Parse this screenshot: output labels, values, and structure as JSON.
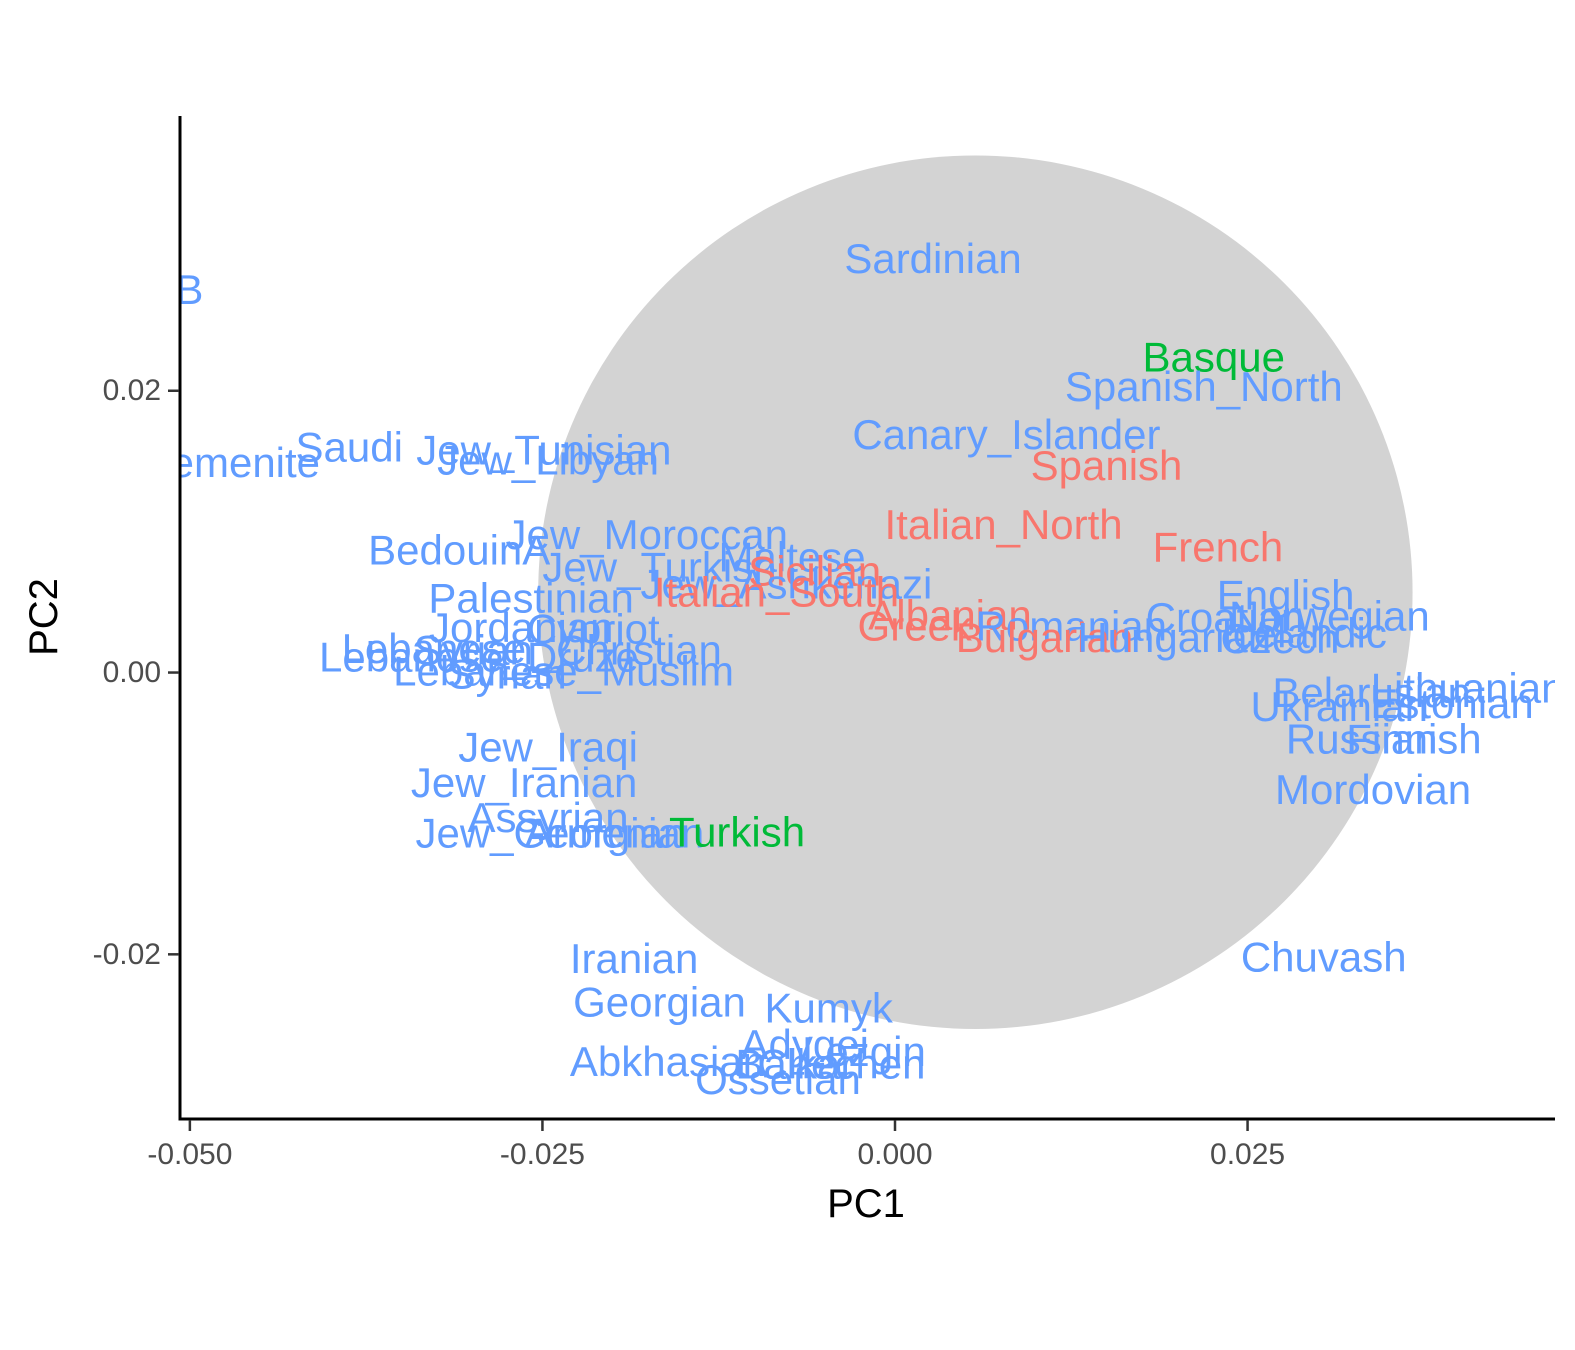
{
  "chart_data": {
    "type": "scatter",
    "title": "",
    "xlabel": "PC1",
    "ylabel": "PC2",
    "xlim": [
      -0.0507,
      0.0468
    ],
    "ylim": [
      -0.0319,
      0.0395
    ],
    "x_ticks": [
      -0.05,
      -0.025,
      0.0,
      0.025
    ],
    "x_tick_labels": [
      "-0.050",
      "-0.025",
      "0.000",
      "0.025"
    ],
    "y_ticks": [
      -0.02,
      0.0,
      0.02
    ],
    "y_tick_labels": [
      "-0.02",
      "0.00",
      "0.02"
    ],
    "grid": false,
    "legend": "none",
    "colors": {
      "blue": "#619CFF",
      "red": "#F8766D",
      "green": "#00BA38",
      "circle": "#D3D3D3"
    },
    "highlight_region": {
      "center_x": 0.0057,
      "center_y": 0.0057,
      "radius_x": 0.031,
      "radius_y": 0.031
    },
    "points": [
      {
        "label": "BedouinB",
        "x": -0.0555,
        "y": 0.0272,
        "color": "blue"
      },
      {
        "label": "Sardinian",
        "x": 0.0027,
        "y": 0.0294,
        "color": "blue"
      },
      {
        "label": "Basque",
        "x": 0.0226,
        "y": 0.0224,
        "color": "green"
      },
      {
        "label": "Spanish_North",
        "x": 0.0219,
        "y": 0.0203,
        "color": "blue"
      },
      {
        "label": "Canary_Islander",
        "x": 0.0079,
        "y": 0.0169,
        "color": "blue"
      },
      {
        "label": "Spanish",
        "x": 0.015,
        "y": 0.0147,
        "color": "red"
      },
      {
        "label": "Saudi",
        "x": -0.0387,
        "y": 0.016,
        "color": "blue"
      },
      {
        "label": "Jew_Yemenite",
        "x": -0.0504,
        "y": 0.0149,
        "color": "blue"
      },
      {
        "label": "Jew_Tunisian",
        "x": -0.0249,
        "y": 0.0158,
        "color": "blue"
      },
      {
        "label": "Jew_Libyan",
        "x": -0.0246,
        "y": 0.0151,
        "color": "blue"
      },
      {
        "label": "Italian_North",
        "x": 0.0077,
        "y": 0.0105,
        "color": "red"
      },
      {
        "label": "French",
        "x": 0.0229,
        "y": 0.0089,
        "color": "red"
      },
      {
        "label": "BedouinA",
        "x": -0.0309,
        "y": 0.0087,
        "color": "blue"
      },
      {
        "label": "Jew_Moroccan",
        "x": -0.0176,
        "y": 0.0098,
        "color": "blue"
      },
      {
        "label": "Maltese",
        "x": -0.0073,
        "y": 0.0082,
        "color": "blue"
      },
      {
        "label": "Jew_Turkish",
        "x": -0.0167,
        "y": 0.0075,
        "color": "blue"
      },
      {
        "label": "Sicilian",
        "x": -0.0057,
        "y": 0.0072,
        "color": "red"
      },
      {
        "label": "Jew_Ashkenazi",
        "x": -0.0077,
        "y": 0.0063,
        "color": "blue"
      },
      {
        "label": "Italian_South",
        "x": -0.0084,
        "y": 0.0057,
        "color": "red"
      },
      {
        "label": "English",
        "x": 0.0277,
        "y": 0.0055,
        "color": "blue"
      },
      {
        "label": "Palestinian",
        "x": -0.0258,
        "y": 0.0053,
        "color": "blue"
      },
      {
        "label": "Albanian",
        "x": 0.0039,
        "y": 0.0041,
        "color": "red"
      },
      {
        "label": "Norwegian",
        "x": 0.0308,
        "y": 0.004,
        "color": "blue"
      },
      {
        "label": "Croatian",
        "x": 0.0234,
        "y": 0.0039,
        "color": "blue"
      },
      {
        "label": "Jordanian",
        "x": -0.0265,
        "y": 0.0032,
        "color": "blue"
      },
      {
        "label": "Cypriot",
        "x": -0.0214,
        "y": 0.0031,
        "color": "blue"
      },
      {
        "label": "Greek",
        "x": 0.0014,
        "y": 0.0033,
        "color": "red"
      },
      {
        "label": "Romanian",
        "x": 0.0125,
        "y": 0.0033,
        "color": "blue"
      },
      {
        "label": "Icelandic",
        "x": 0.029,
        "y": 0.0028,
        "color": "blue"
      },
      {
        "label": "Bulgarian",
        "x": 0.0106,
        "y": 0.0025,
        "color": "red"
      },
      {
        "label": "Hungarian",
        "x": 0.0198,
        "y": 0.0025,
        "color": "blue"
      },
      {
        "label": "Czech",
        "x": 0.0273,
        "y": 0.0024,
        "color": "blue"
      },
      {
        "label": "Syrian_Christian",
        "x": -0.0232,
        "y": 0.0016,
        "color": "blue"
      },
      {
        "label": "Lebanese",
        "x": -0.0327,
        "y": 0.0017,
        "color": "blue"
      },
      {
        "label": "Lebanese_Druze",
        "x": -0.0295,
        "y": 0.0011,
        "color": "blue"
      },
      {
        "label": "Lebanese_Muslim",
        "x": -0.0235,
        "y": 0.0001,
        "color": "blue"
      },
      {
        "label": "Syrian",
        "x": -0.0275,
        "y": -0.0001,
        "color": "blue"
      },
      {
        "label": "Lithuanian",
        "x": 0.0406,
        "y": -0.0011,
        "color": "blue"
      },
      {
        "label": "Belarusian",
        "x": 0.0338,
        "y": -0.0014,
        "color": "blue"
      },
      {
        "label": "Estonian",
        "x": 0.0395,
        "y": -0.0022,
        "color": "blue"
      },
      {
        "label": "Ukrainian",
        "x": 0.0315,
        "y": -0.0024,
        "color": "blue"
      },
      {
        "label": "Russian",
        "x": 0.0331,
        "y": -0.0047,
        "color": "blue"
      },
      {
        "label": "Finnish",
        "x": 0.0368,
        "y": -0.0047,
        "color": "blue"
      },
      {
        "label": "Jew_Iraqi",
        "x": -0.0246,
        "y": -0.0053,
        "color": "blue"
      },
      {
        "label": "Jew_Iranian",
        "x": -0.0263,
        "y": -0.0078,
        "color": "blue"
      },
      {
        "label": "Mordovian",
        "x": 0.0339,
        "y": -0.0083,
        "color": "blue"
      },
      {
        "label": "Assyrian",
        "x": -0.0246,
        "y": -0.0103,
        "color": "blue"
      },
      {
        "label": "Jew_Georgian",
        "x": -0.0244,
        "y": -0.0114,
        "color": "blue"
      },
      {
        "label": "Armenian",
        "x": -0.0199,
        "y": -0.0114,
        "color": "blue"
      },
      {
        "label": "Turkish",
        "x": -0.0112,
        "y": -0.0113,
        "color": "green"
      },
      {
        "label": "Iranian",
        "x": -0.0185,
        "y": -0.0203,
        "color": "blue"
      },
      {
        "label": "Chuvash",
        "x": 0.0304,
        "y": -0.0202,
        "color": "blue"
      },
      {
        "label": "Georgian",
        "x": -0.0167,
        "y": -0.0234,
        "color": "blue"
      },
      {
        "label": "Kumyk",
        "x": -0.0047,
        "y": -0.0238,
        "color": "blue"
      },
      {
        "label": "Adygei",
        "x": -0.0064,
        "y": -0.0264,
        "color": "blue"
      },
      {
        "label": "Lezgin",
        "x": -0.0022,
        "y": -0.0269,
        "color": "blue"
      },
      {
        "label": "Abkhasian",
        "x": -0.0161,
        "y": -0.0276,
        "color": "blue"
      },
      {
        "label": "Balkar",
        "x": -0.0071,
        "y": -0.0278,
        "color": "blue"
      },
      {
        "label": "Chechen",
        "x": -0.0038,
        "y": -0.0278,
        "color": "blue"
      },
      {
        "label": "Ossetian",
        "x": -0.0083,
        "y": -0.0289,
        "color": "blue"
      }
    ]
  }
}
